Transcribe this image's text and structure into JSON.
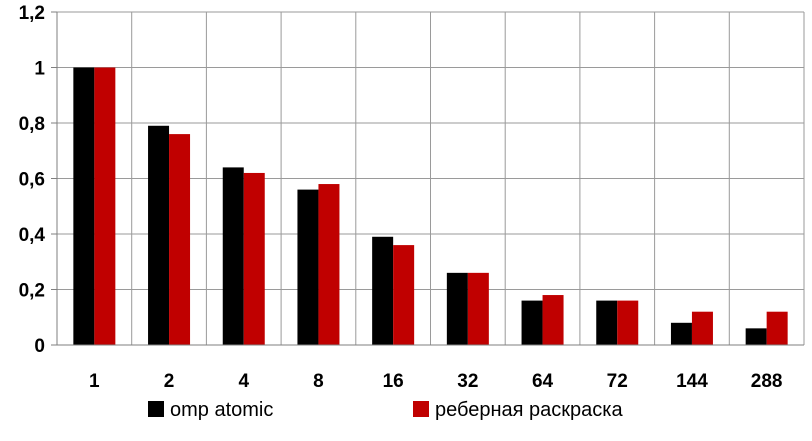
{
  "chart_data": {
    "type": "bar",
    "categories": [
      "1",
      "2",
      "4",
      "8",
      "16",
      "32",
      "64",
      "72",
      "144",
      "288"
    ],
    "series": [
      {
        "name": "omp atomic",
        "color": "#000000",
        "values": [
          1.0,
          0.79,
          0.64,
          0.56,
          0.39,
          0.26,
          0.16,
          0.16,
          0.08,
          0.06
        ]
      },
      {
        "name": "реберная раскраска",
        "color": "#c00000",
        "values": [
          1.0,
          0.76,
          0.62,
          0.58,
          0.36,
          0.26,
          0.18,
          0.16,
          0.12,
          0.12
        ]
      }
    ],
    "yticks": [
      "0",
      "0,2",
      "0,4",
      "0,6",
      "0,8",
      "1",
      "1,2"
    ],
    "ylim": [
      0,
      1.2
    ],
    "grid": true,
    "legend_position": "bottom"
  }
}
